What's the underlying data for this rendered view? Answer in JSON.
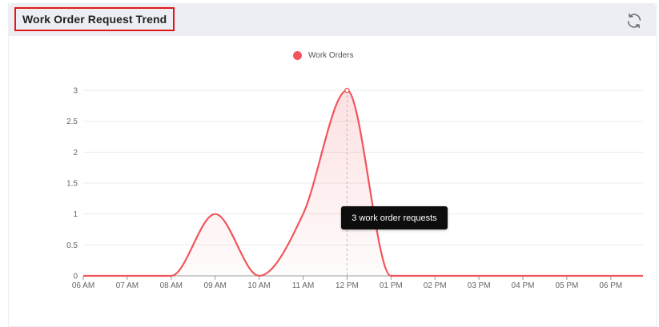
{
  "header": {
    "title": "Work Order Request Trend",
    "refresh_icon": "refresh-icon"
  },
  "tooltip": {
    "text": "3 work order requests"
  },
  "colors": {
    "series": "#f2545b",
    "header_bg": "#eceef3",
    "highlight_border": "#e4161b"
  },
  "chart_data": {
    "type": "area",
    "x": [
      "06 AM",
      "07 AM",
      "08 AM",
      "09 AM",
      "10 AM",
      "11 AM",
      "12 PM",
      "01 PM",
      "02 PM",
      "03 PM",
      "04 PM",
      "05 PM",
      "06 PM"
    ],
    "series": [
      {
        "name": "Work Orders",
        "values": [
          0,
          0,
          0,
          1,
          0,
          1,
          3,
          0,
          0,
          0,
          0,
          0,
          0
        ]
      }
    ],
    "yticks": [
      "0",
      "0.5",
      "1",
      "1.5",
      "2",
      "2.5",
      "3"
    ],
    "ylim": [
      0,
      3
    ],
    "grid": true,
    "legend": "top-center",
    "highlighted_point": {
      "x": "12 PM",
      "y": 3
    }
  }
}
